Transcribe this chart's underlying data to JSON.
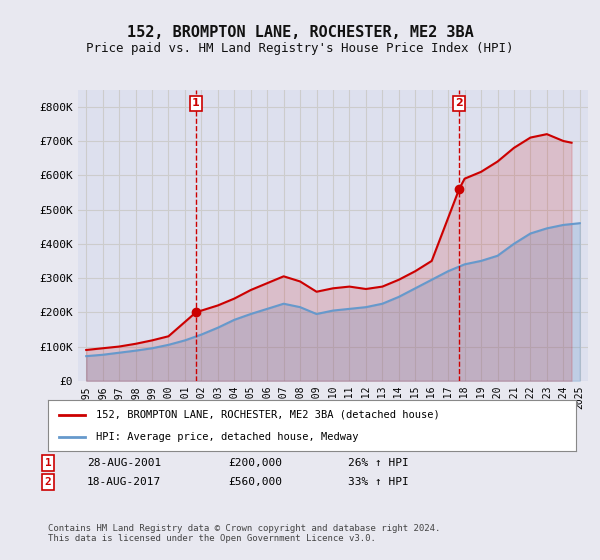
{
  "title": "152, BROMPTON LANE, ROCHESTER, ME2 3BA",
  "subtitle": "Price paid vs. HM Land Registry's House Price Index (HPI)",
  "years": [
    1995,
    1996,
    1997,
    1998,
    1999,
    2000,
    2001,
    2002,
    2003,
    2004,
    2005,
    2006,
    2007,
    2008,
    2009,
    2010,
    2011,
    2012,
    2013,
    2014,
    2015,
    2016,
    2017,
    2018,
    2019,
    2020,
    2021,
    2022,
    2023,
    2024,
    2025
  ],
  "hpi_values": [
    72000,
    76000,
    82000,
    88000,
    95000,
    105000,
    118000,
    135000,
    155000,
    178000,
    195000,
    210000,
    225000,
    215000,
    195000,
    205000,
    210000,
    215000,
    225000,
    245000,
    270000,
    295000,
    320000,
    340000,
    350000,
    365000,
    400000,
    430000,
    445000,
    455000,
    460000
  ],
  "red_line_points_x": [
    1995.0,
    1996.0,
    1997.0,
    1998.0,
    1999.0,
    2000.0,
    2001.67,
    2003.0,
    2004.0,
    2005.0,
    2006.0,
    2007.0,
    2008.0,
    2009.0,
    2010.0,
    2011.0,
    2012.0,
    2013.0,
    2014.0,
    2015.0,
    2016.0,
    2017.67,
    2018.0,
    2019.0,
    2020.0,
    2021.0,
    2022.0,
    2023.0,
    2024.0,
    2024.5
  ],
  "red_line_points_y": [
    90000,
    95000,
    100000,
    108000,
    118000,
    130000,
    200000,
    220000,
    240000,
    265000,
    285000,
    305000,
    290000,
    260000,
    270000,
    275000,
    268000,
    275000,
    295000,
    320000,
    350000,
    560000,
    590000,
    610000,
    640000,
    680000,
    710000,
    720000,
    700000,
    695000
  ],
  "marker1_x": 2001.67,
  "marker1_y": 200000,
  "marker1_label": "1",
  "marker1_date": "28-AUG-2001",
  "marker1_price": "£200,000",
  "marker1_hpi": "26% ↑ HPI",
  "marker2_x": 2017.67,
  "marker2_y": 560000,
  "marker2_label": "2",
  "marker2_date": "18-AUG-2017",
  "marker2_price": "£560,000",
  "marker2_hpi": "33% ↑ HPI",
  "ylim": [
    0,
    850000
  ],
  "xlim_start": 1994.5,
  "xlim_end": 2025.5,
  "red_color": "#cc0000",
  "blue_color": "#6699cc",
  "grid_color": "#cccccc",
  "bg_color": "#e8e8f0",
  "plot_bg_color": "#dde0ee",
  "legend_label_red": "152, BROMPTON LANE, ROCHESTER, ME2 3BA (detached house)",
  "legend_label_blue": "HPI: Average price, detached house, Medway",
  "footer": "Contains HM Land Registry data © Crown copyright and database right 2024.\nThis data is licensed under the Open Government Licence v3.0.",
  "yticks": [
    0,
    100000,
    200000,
    300000,
    400000,
    500000,
    600000,
    700000,
    800000
  ],
  "ytick_labels": [
    "£0",
    "£100K",
    "£200K",
    "£300K",
    "£400K",
    "£500K",
    "£600K",
    "£700K",
    "£800K"
  ],
  "xticks": [
    1995,
    1996,
    1997,
    1998,
    1999,
    2000,
    2001,
    2002,
    2003,
    2004,
    2005,
    2006,
    2007,
    2008,
    2009,
    2010,
    2011,
    2012,
    2013,
    2014,
    2015,
    2016,
    2017,
    2018,
    2019,
    2020,
    2021,
    2022,
    2023,
    2024,
    2025
  ]
}
